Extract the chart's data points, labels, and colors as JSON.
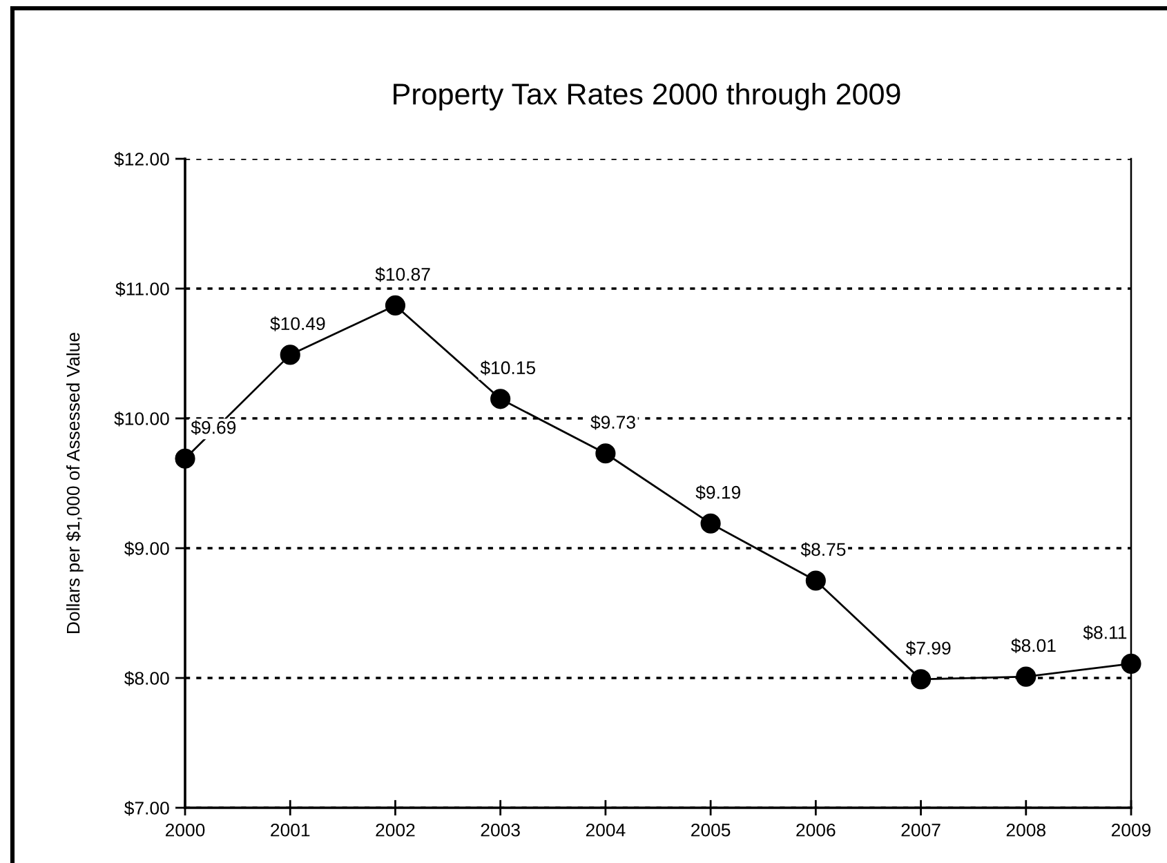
{
  "chart_data": {
    "type": "line",
    "title": "Property Tax Rates 2000 through 2009",
    "ylabel": "Dollars per $1,000 of Assessed Value",
    "x": [
      2000,
      2001,
      2002,
      2003,
      2004,
      2005,
      2006,
      2007,
      2008,
      2009
    ],
    "values": [
      9.69,
      10.49,
      10.87,
      10.15,
      9.73,
      9.19,
      8.75,
      7.99,
      8.01,
      8.11
    ],
    "value_labels": [
      "$9.69",
      "$10.49",
      "$10.87",
      "$10.15",
      "$9.73",
      "$9.19",
      "$8.75",
      "$7.99",
      "$8.01",
      "$8.11"
    ],
    "color": "#000000",
    "xlim": [
      2000,
      2009
    ],
    "xticks": [
      2000,
      2001,
      2002,
      2003,
      2004,
      2005,
      2006,
      2007,
      2008,
      2009
    ],
    "ylim": [
      7,
      12
    ],
    "yticks": [
      {
        "value": 7,
        "label": "$7.00"
      },
      {
        "value": 8,
        "label": "$8.00"
      },
      {
        "value": 9,
        "label": "$9.00"
      },
      {
        "value": 10,
        "label": "$10.00"
      },
      {
        "value": 11,
        "label": "$11.00"
      },
      {
        "value": 12,
        "label": "$12.00"
      }
    ],
    "grid": "y",
    "marker": "circle",
    "line_style": "solid"
  }
}
